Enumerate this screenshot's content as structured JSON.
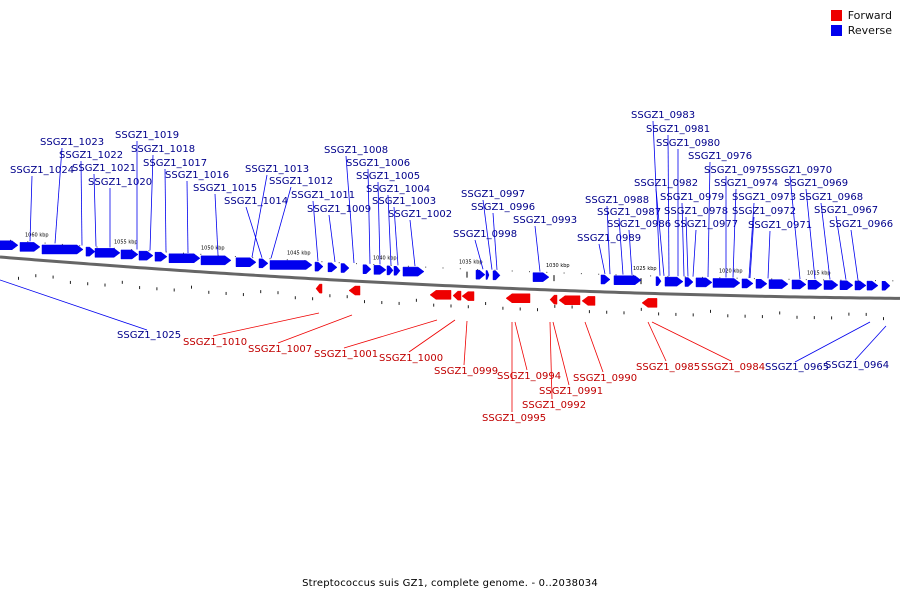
{
  "legend": {
    "forward": {
      "label": "Forward",
      "color": "#ee0000"
    },
    "reverse": {
      "label": "Reverse",
      "color": "#0000ee"
    }
  },
  "caption": "Streptococcus suis GZ1, complete genome. - 0..2038034",
  "colors": {
    "backbone": "#666666",
    "label_reverse": "#00008b",
    "label_forward": "#c00000",
    "tick": "#000000"
  },
  "scale_labels": [
    "1060 kbp",
    "1055 kbp",
    "1050 kbp",
    "1045 kbp",
    "1040 kbp",
    "1035 kbp",
    "1030 kbp",
    "1025 kbp",
    "1020 kbp",
    "1015 kbp"
  ],
  "reverse_genes": [
    "SSGZ1_1024",
    "SSGZ1_1023",
    "SSGZ1_1022",
    "SSGZ1_1021",
    "SSGZ1_1020",
    "SSGZ1_1019",
    "SSGZ1_1018",
    "SSGZ1_1017",
    "SSGZ1_1016",
    "SSGZ1_1015",
    "SSGZ1_1014",
    "SSGZ1_1013",
    "SSGZ1_1012",
    "SSGZ1_1011",
    "SSGZ1_1009",
    "SSGZ1_1008",
    "SSGZ1_1006",
    "SSGZ1_1005",
    "SSGZ1_1004",
    "SSGZ1_1003",
    "SSGZ1_1002",
    "SSGZ1_0997",
    "SSGZ1_0996",
    "SSGZ1_0998",
    "SSGZ1_0993",
    "SSGZ1_0989",
    "SSGZ1_0988",
    "SSGZ1_0987",
    "SSGZ1_0986",
    "SSGZ1_0983",
    "SSGZ1_0981",
    "SSGZ1_0980",
    "SSGZ1_0982",
    "SSGZ1_0979",
    "SSGZ1_0978",
    "SSGZ1_0977",
    "SSGZ1_0976",
    "SSGZ1_0975",
    "SSGZ1_0974",
    "SSGZ1_0973",
    "SSGZ1_0972",
    "SSGZ1_0971",
    "SSGZ1_0970",
    "SSGZ1_0969",
    "SSGZ1_0968",
    "SSGZ1_0967",
    "SSGZ1_0966",
    "SSGZ1_1025",
    "SSGZ1_0965",
    "SSGZ1_0964"
  ],
  "forward_genes": [
    "SSGZ1_1010",
    "SSGZ1_1007",
    "SSGZ1_1001",
    "SSGZ1_1000",
    "SSGZ1_0999",
    "SSGZ1_0994",
    "SSGZ1_0995",
    "SSGZ1_0991",
    "SSGZ1_0992",
    "SSGZ1_0990",
    "SSGZ1_0985",
    "SSGZ1_0984"
  ]
}
